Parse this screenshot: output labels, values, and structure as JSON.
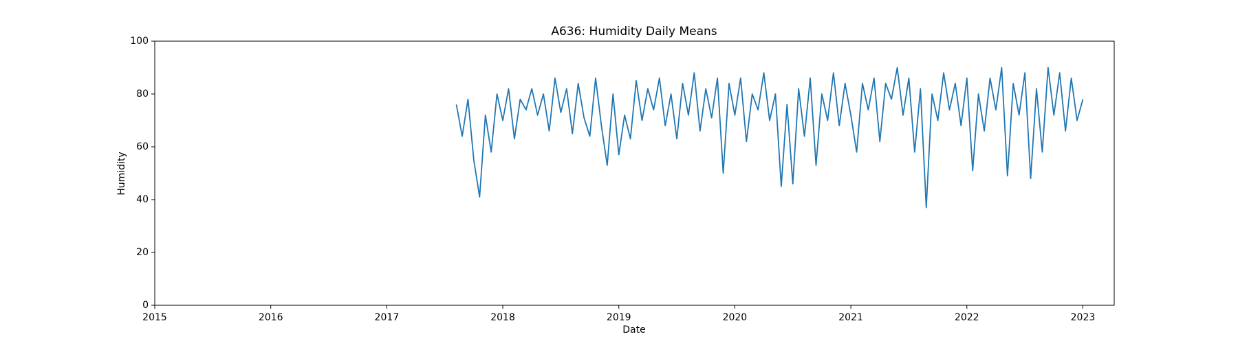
{
  "chart_data": {
    "type": "line",
    "title": "A636: Humidity Daily Means",
    "xlabel": "Date",
    "ylabel": "Humidity",
    "color": "#1f77b4",
    "xlim": [
      2015,
      2023.27
    ],
    "xticks": [
      2015,
      2016,
      2017,
      2018,
      2019,
      2020,
      2021,
      2022,
      2023
    ],
    "ylim": [
      0,
      100
    ],
    "yticks": [
      0,
      20,
      40,
      60,
      80,
      100
    ],
    "grid": false,
    "x": [
      2017.6,
      2017.65,
      2017.7,
      2017.75,
      2017.8,
      2017.85,
      2017.9,
      2017.95,
      2018.0,
      2018.05,
      2018.1,
      2018.15,
      2018.2,
      2018.25,
      2018.3,
      2018.35,
      2018.4,
      2018.45,
      2018.5,
      2018.55,
      2018.6,
      2018.65,
      2018.7,
      2018.75,
      2018.8,
      2018.85,
      2018.9,
      2018.95,
      2019.0,
      2019.05,
      2019.1,
      2019.15,
      2019.2,
      2019.25,
      2019.3,
      2019.35,
      2019.4,
      2019.45,
      2019.5,
      2019.55,
      2019.6,
      2019.65,
      2019.7,
      2019.75,
      2019.8,
      2019.85,
      2019.9,
      2019.95,
      2020.0,
      2020.05,
      2020.1,
      2020.15,
      2020.2,
      2020.25,
      2020.3,
      2020.35,
      2020.4,
      2020.45,
      2020.5,
      2020.55,
      2020.6,
      2020.65,
      2020.7,
      2020.75,
      2020.8,
      2020.85,
      2020.9,
      2020.95,
      2021.0,
      2021.05,
      2021.1,
      2021.15,
      2021.2,
      2021.25,
      2021.3,
      2021.35,
      2021.4,
      2021.45,
      2021.5,
      2021.55,
      2021.6,
      2021.65,
      2021.7,
      2021.75,
      2021.8,
      2021.85,
      2021.9,
      2021.95,
      2022.0,
      2022.05,
      2022.1,
      2022.15,
      2022.2,
      2022.25,
      2022.3,
      2022.35,
      2022.4,
      2022.45,
      2022.5,
      2022.55,
      2022.6,
      2022.65,
      2022.7,
      2022.75,
      2022.8,
      2022.85,
      2022.9,
      2022.95,
      2023.0
    ],
    "values": [
      76,
      64,
      78,
      55,
      41,
      72,
      58,
      80,
      70,
      82,
      63,
      78,
      74,
      82,
      72,
      80,
      66,
      86,
      73,
      82,
      65,
      84,
      71,
      64,
      86,
      68,
      53,
      80,
      57,
      72,
      63,
      85,
      70,
      82,
      74,
      86,
      68,
      80,
      63,
      84,
      72,
      88,
      66,
      82,
      71,
      86,
      50,
      84,
      72,
      86,
      62,
      80,
      74,
      88,
      70,
      80,
      45,
      76,
      46,
      82,
      64,
      86,
      53,
      80,
      70,
      88,
      68,
      84,
      72,
      58,
      84,
      74,
      86,
      62,
      84,
      78,
      90,
      72,
      86,
      58,
      82,
      37,
      80,
      70,
      88,
      74,
      84,
      68,
      86,
      51,
      80,
      66,
      86,
      74,
      90,
      49,
      84,
      72,
      88,
      48,
      82,
      58,
      90,
      72,
      88,
      66,
      86,
      70,
      78
    ]
  }
}
